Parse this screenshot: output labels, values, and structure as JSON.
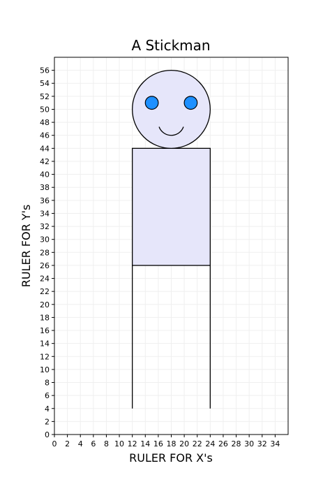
{
  "chart_data": {
    "type": "diagram",
    "title": "A Stickman",
    "xlabel": "RULER FOR X's",
    "ylabel": "RULER FOR Y's",
    "xlim": [
      0,
      36
    ],
    "ylim": [
      0,
      58
    ],
    "xticks": [
      0,
      2,
      4,
      6,
      8,
      10,
      12,
      14,
      16,
      18,
      20,
      22,
      24,
      26,
      28,
      30,
      32,
      34
    ],
    "yticks": [
      0,
      2,
      4,
      6,
      8,
      10,
      12,
      14,
      16,
      18,
      20,
      22,
      24,
      26,
      28,
      30,
      32,
      34,
      36,
      38,
      40,
      42,
      44,
      46,
      48,
      50,
      52,
      54,
      56
    ],
    "grid": true,
    "shapes": {
      "head": {
        "type": "circle",
        "center": [
          18,
          50
        ],
        "radius": 6,
        "fill": "#e6e6fa",
        "stroke": "#000000"
      },
      "eyes": [
        {
          "type": "circle",
          "center": [
            15,
            51
          ],
          "radius": 1,
          "fill": "#1e90ff",
          "stroke": "#000000"
        },
        {
          "type": "circle",
          "center": [
            21,
            51
          ],
          "radius": 1,
          "fill": "#1e90ff",
          "stroke": "#000000"
        }
      ],
      "mouth": {
        "type": "arc",
        "center": [
          18,
          48
        ],
        "radius": 2,
        "from_deg": 200,
        "to_deg": 340,
        "stroke": "#000000"
      },
      "body": {
        "type": "rectangle",
        "x": [
          12,
          24
        ],
        "y": [
          26,
          44
        ],
        "fill": "#e6e6fa",
        "stroke": "#000000"
      },
      "legs": [
        {
          "type": "line",
          "points": [
            [
              12,
              26
            ],
            [
              12,
              4
            ]
          ],
          "stroke": "#000000"
        },
        {
          "type": "line",
          "points": [
            [
              24,
              26
            ],
            [
              24,
              4
            ]
          ],
          "stroke": "#000000"
        }
      ]
    }
  }
}
